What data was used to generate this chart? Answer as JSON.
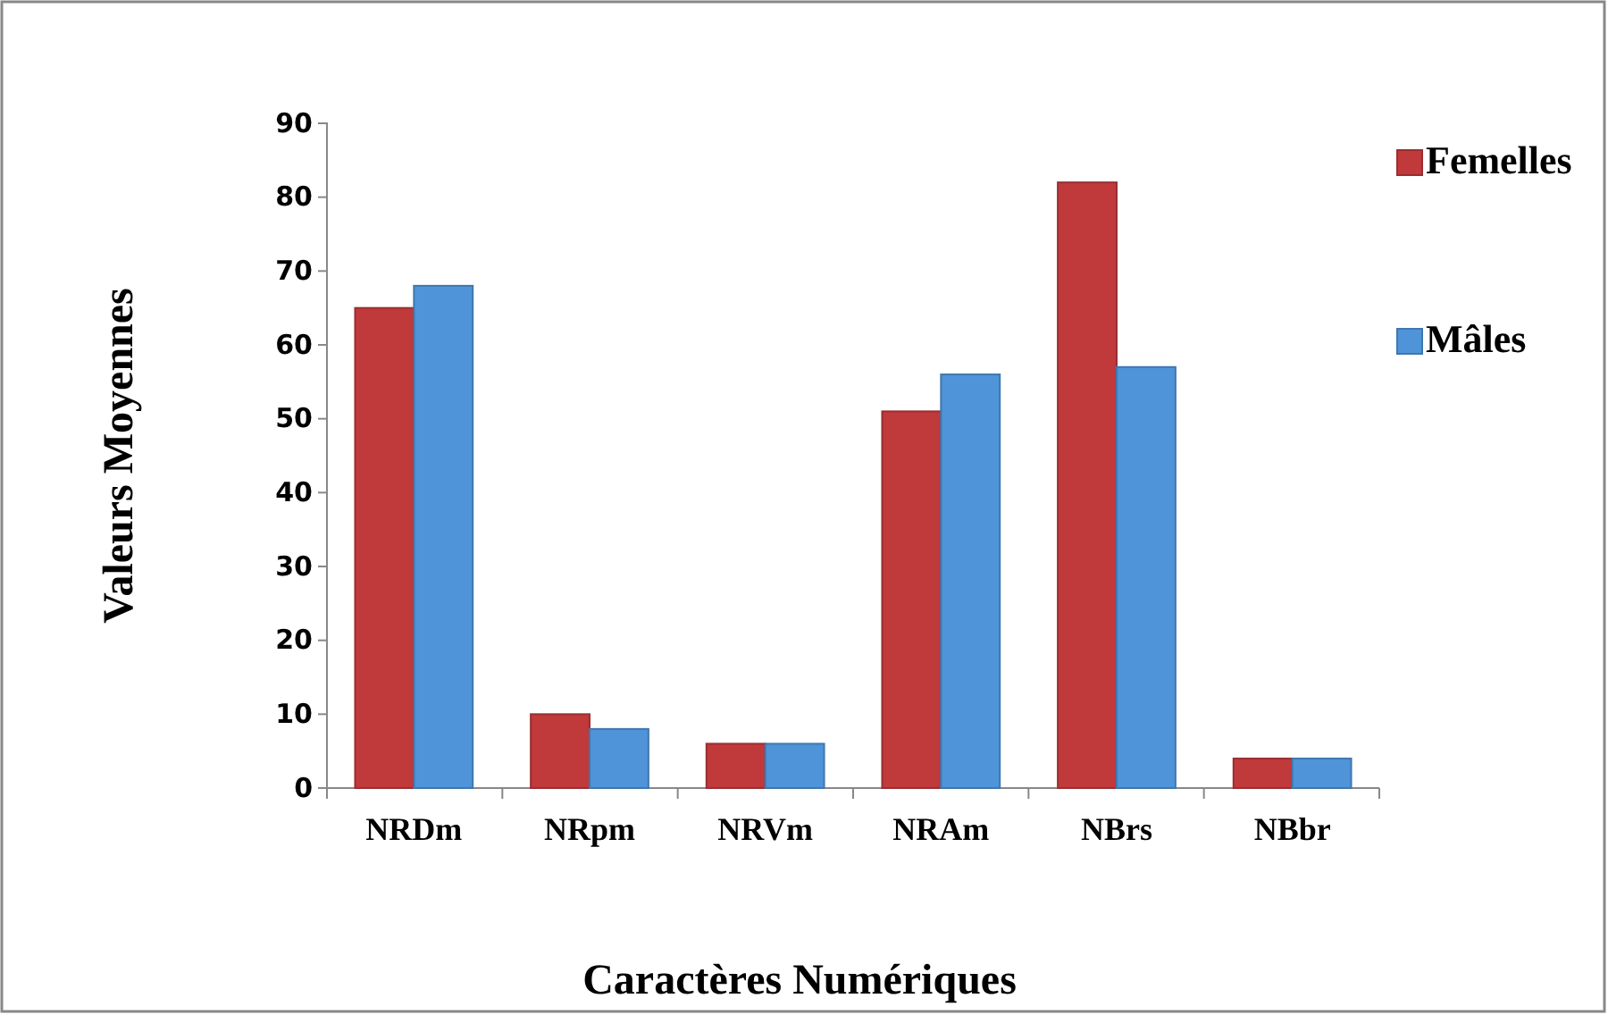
{
  "chart_data": {
    "type": "bar",
    "xlabel": "Caractères Numériques",
    "ylabel": "Valeurs Moyennes",
    "categories": [
      "NRDm",
      "NRpm",
      "NRVm",
      "NRAm",
      "NBrs",
      "NBbr"
    ],
    "series": [
      {
        "name": "Femelles",
        "color": "#c0393b",
        "values": [
          65,
          10,
          6,
          51,
          82,
          4
        ]
      },
      {
        "name": "Mâles",
        "color": "#4f94d8",
        "values": [
          68,
          8,
          6,
          56,
          57,
          4
        ]
      }
    ],
    "ylim": [
      0,
      90
    ],
    "yticks": [
      0,
      10,
      20,
      30,
      40,
      50,
      60,
      70,
      80,
      90
    ],
    "grid": false,
    "legend": "right"
  }
}
